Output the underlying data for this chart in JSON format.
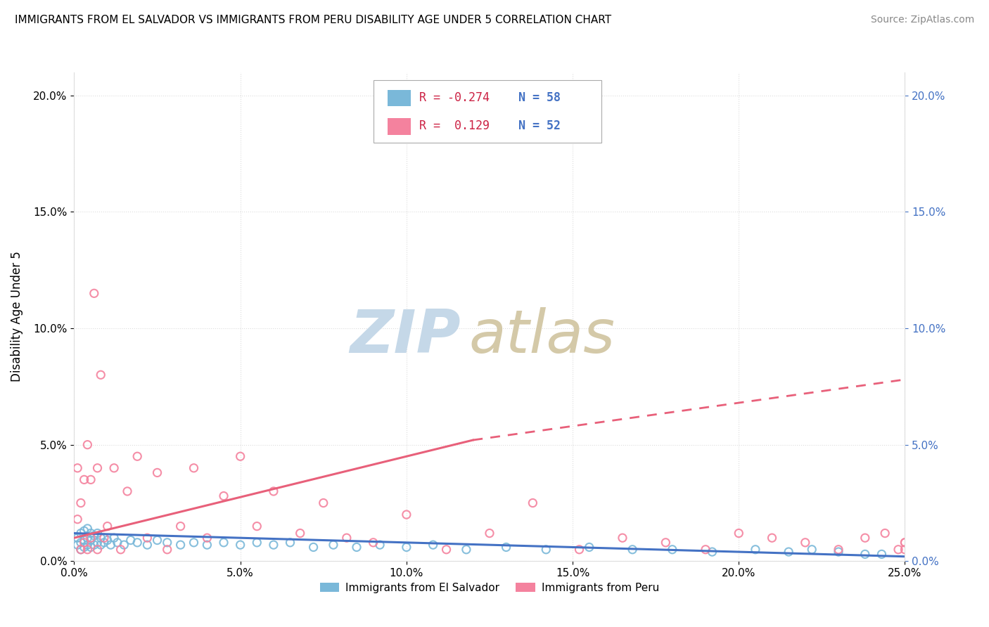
{
  "title": "IMMIGRANTS FROM EL SALVADOR VS IMMIGRANTS FROM PERU DISABILITY AGE UNDER 5 CORRELATION CHART",
  "source": "Source: ZipAtlas.com",
  "ylabel": "Disability Age Under 5",
  "xlim": [
    0.0,
    0.25
  ],
  "ylim": [
    0.0,
    0.21
  ],
  "color_salvador": "#7ab8d9",
  "color_peru": "#f4829e",
  "color_salvador_line": "#4472c4",
  "color_peru_line": "#e8607a",
  "r_salvador": -0.274,
  "n_salvador": 58,
  "r_peru": 0.129,
  "n_peru": 52,
  "legend_r1_text": "R = -0.274",
  "legend_n1_text": "N = 58",
  "legend_r2_text": "R =  0.129",
  "legend_n2_text": "N = 52",
  "el_salvador_x": [
    0.001,
    0.001,
    0.002,
    0.002,
    0.002,
    0.003,
    0.003,
    0.003,
    0.004,
    0.004,
    0.004,
    0.005,
    0.005,
    0.005,
    0.006,
    0.006,
    0.007,
    0.007,
    0.008,
    0.008,
    0.009,
    0.01,
    0.011,
    0.012,
    0.013,
    0.015,
    0.017,
    0.019,
    0.022,
    0.025,
    0.028,
    0.032,
    0.036,
    0.04,
    0.045,
    0.05,
    0.055,
    0.06,
    0.065,
    0.072,
    0.078,
    0.085,
    0.092,
    0.1,
    0.108,
    0.118,
    0.13,
    0.142,
    0.155,
    0.168,
    0.18,
    0.192,
    0.205,
    0.215,
    0.222,
    0.23,
    0.238,
    0.243
  ],
  "el_salvador_y": [
    0.007,
    0.01,
    0.005,
    0.008,
    0.012,
    0.006,
    0.009,
    0.013,
    0.007,
    0.01,
    0.014,
    0.006,
    0.009,
    0.012,
    0.007,
    0.011,
    0.008,
    0.012,
    0.007,
    0.01,
    0.008,
    0.009,
    0.007,
    0.01,
    0.008,
    0.007,
    0.009,
    0.008,
    0.007,
    0.009,
    0.008,
    0.007,
    0.008,
    0.007,
    0.008,
    0.007,
    0.008,
    0.007,
    0.008,
    0.006,
    0.007,
    0.006,
    0.007,
    0.006,
    0.007,
    0.005,
    0.006,
    0.005,
    0.006,
    0.005,
    0.005,
    0.004,
    0.005,
    0.004,
    0.005,
    0.004,
    0.003,
    0.003
  ],
  "peru_x": [
    0.001,
    0.001,
    0.002,
    0.002,
    0.003,
    0.003,
    0.004,
    0.004,
    0.005,
    0.005,
    0.006,
    0.007,
    0.007,
    0.008,
    0.009,
    0.01,
    0.012,
    0.014,
    0.016,
    0.019,
    0.022,
    0.025,
    0.028,
    0.032,
    0.036,
    0.04,
    0.045,
    0.05,
    0.055,
    0.06,
    0.068,
    0.075,
    0.082,
    0.09,
    0.1,
    0.112,
    0.125,
    0.138,
    0.152,
    0.165,
    0.178,
    0.19,
    0.2,
    0.21,
    0.22,
    0.23,
    0.238,
    0.244,
    0.248,
    0.25,
    0.25,
    0.25
  ],
  "peru_y": [
    0.018,
    0.04,
    0.005,
    0.025,
    0.008,
    0.035,
    0.005,
    0.05,
    0.01,
    0.035,
    0.115,
    0.005,
    0.04,
    0.08,
    0.01,
    0.015,
    0.04,
    0.005,
    0.03,
    0.045,
    0.01,
    0.038,
    0.005,
    0.015,
    0.04,
    0.01,
    0.028,
    0.045,
    0.015,
    0.03,
    0.012,
    0.025,
    0.01,
    0.008,
    0.02,
    0.005,
    0.012,
    0.025,
    0.005,
    0.01,
    0.008,
    0.005,
    0.012,
    0.01,
    0.008,
    0.005,
    0.01,
    0.012,
    0.005,
    0.008,
    0.008,
    0.005
  ],
  "trend_sal_x0": 0.0,
  "trend_sal_y0": 0.012,
  "trend_sal_x1": 0.25,
  "trend_sal_y1": 0.002,
  "trend_peru_solid_x0": 0.0,
  "trend_peru_solid_y0": 0.01,
  "trend_peru_solid_x1": 0.12,
  "trend_peru_solid_y1": 0.052,
  "trend_peru_dash_x0": 0.12,
  "trend_peru_dash_y0": 0.052,
  "trend_peru_dash_x1": 0.25,
  "trend_peru_dash_y1": 0.078,
  "watermark_zip_color": "#c5d8e8",
  "watermark_atlas_color": "#d4c9a8",
  "background_color": "#ffffff",
  "grid_color": "#dddddd",
  "right_axis_color": "#4472c4",
  "title_fontsize": 11,
  "source_fontsize": 10,
  "tick_fontsize": 11
}
